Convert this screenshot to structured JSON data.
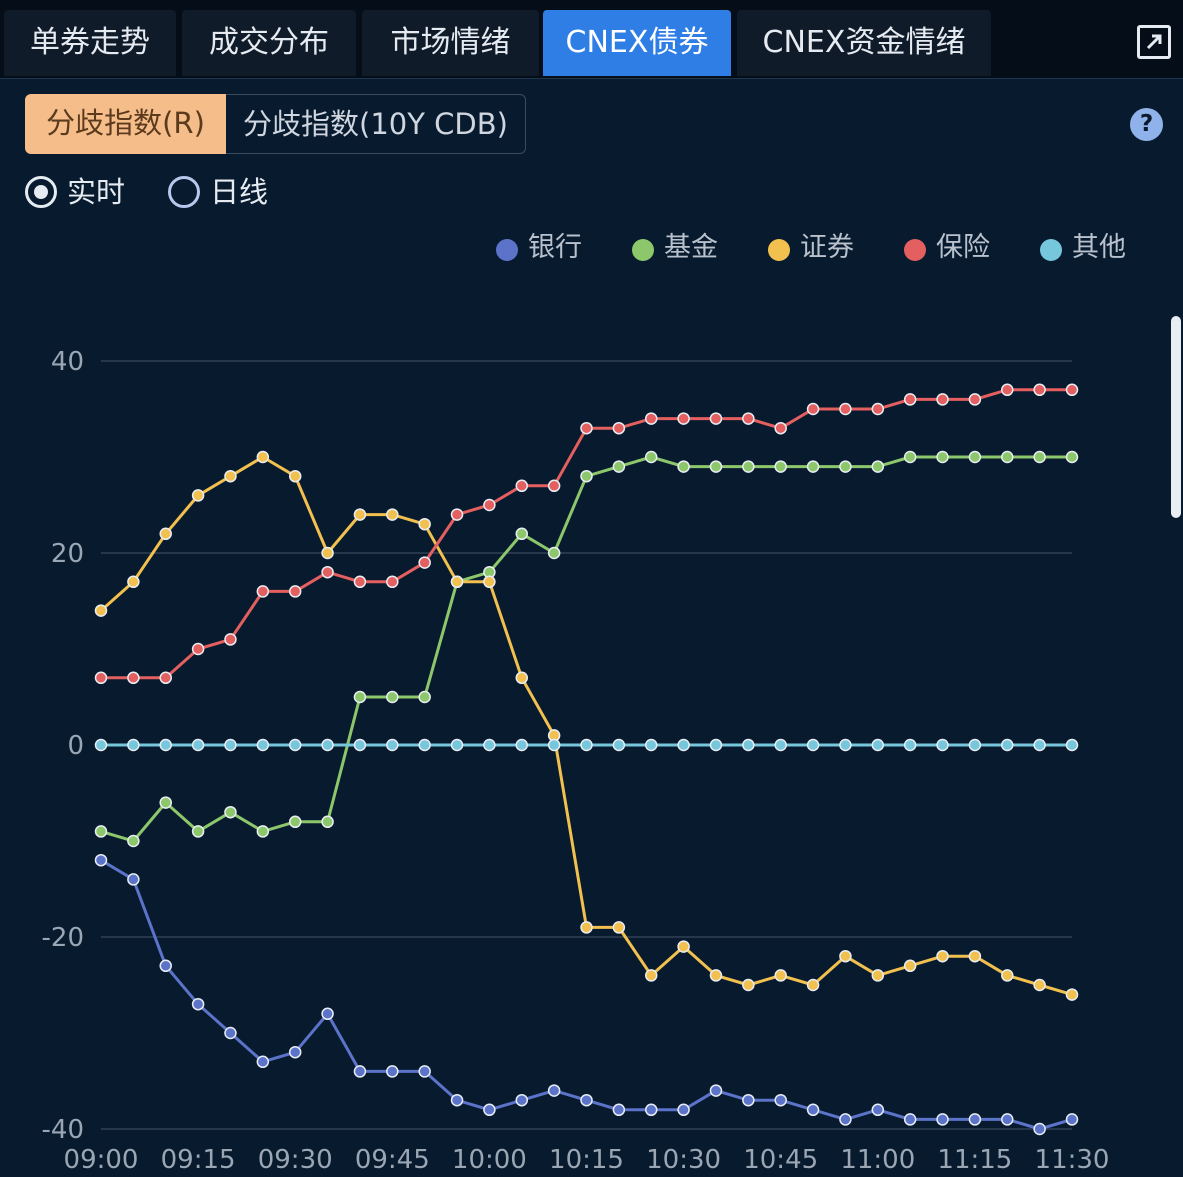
{
  "tabs": [
    {
      "label": "单券走势",
      "active": false
    },
    {
      "label": "成交分布",
      "active": false
    },
    {
      "label": "市场情绪",
      "active": false
    },
    {
      "label": "CNEX债券",
      "active": true
    },
    {
      "label": "CNEX资金情绪",
      "active": false
    }
  ],
  "toolbar": {
    "expand_icon": "expand-icon",
    "help_icon": "help-icon",
    "help_label": "?"
  },
  "segments": [
    {
      "label": "分歧指数(R)",
      "selected": true
    },
    {
      "label": "分歧指数(10Y CDB)",
      "selected": false
    }
  ],
  "mode": [
    {
      "label": "实时",
      "selected": true
    },
    {
      "label": "日线",
      "selected": false
    }
  ],
  "colors": {
    "accent": "#2f7ee6",
    "segment_active": "#f5bd8a",
    "background": "#081a2e"
  },
  "chart_data": {
    "type": "line",
    "title": "",
    "xlabel": "",
    "ylabel": "",
    "ylim": [
      -40,
      40
    ],
    "yticks": [
      40,
      20,
      0,
      -20,
      -40
    ],
    "grid": true,
    "legend_position": "top-right",
    "x": [
      "09:00",
      "09:05",
      "09:10",
      "09:15",
      "09:20",
      "09:25",
      "09:30",
      "09:35",
      "09:40",
      "09:45",
      "09:50",
      "09:55",
      "10:00",
      "10:05",
      "10:10",
      "10:15",
      "10:20",
      "10:25",
      "10:30",
      "10:35",
      "10:40",
      "10:45",
      "10:50",
      "10:55",
      "11:00",
      "11:05",
      "11:10",
      "11:15",
      "11:20",
      "11:25",
      "11:30"
    ],
    "xticks": [
      "09:00",
      "09:15",
      "09:30",
      "09:45",
      "10:00",
      "10:15",
      "10:30",
      "10:45",
      "11:00",
      "11:15",
      "11:30"
    ],
    "series": [
      {
        "name": "银行",
        "color": "#5b73c9",
        "values": [
          -12,
          -14,
          -23,
          -27,
          -30,
          -33,
          -32,
          -28,
          -34,
          -34,
          -34,
          -37,
          -38,
          -37,
          -36,
          -37,
          -38,
          -38,
          -38,
          -36,
          -37,
          -37,
          -38,
          -39,
          -38,
          -39,
          -39,
          -39,
          -39,
          -40,
          -39
        ]
      },
      {
        "name": "基金",
        "color": "#8dc76b",
        "values": [
          -9,
          -10,
          -6,
          -9,
          -7,
          -9,
          -8,
          -8,
          5,
          5,
          5,
          17,
          18,
          22,
          20,
          28,
          29,
          30,
          29,
          29,
          29,
          29,
          29,
          29,
          29,
          30,
          30,
          30,
          30,
          30,
          30
        ]
      },
      {
        "name": "证券",
        "color": "#f2c04e",
        "values": [
          14,
          17,
          22,
          26,
          28,
          30,
          28,
          20,
          24,
          24,
          23,
          17,
          17,
          7,
          1,
          -19,
          -19,
          -24,
          -21,
          -24,
          -25,
          -24,
          -25,
          -22,
          -24,
          -23,
          -22,
          -22,
          -24,
          -25,
          -26
        ]
      },
      {
        "name": "保险",
        "color": "#e45f5f",
        "values": [
          7,
          7,
          7,
          10,
          11,
          16,
          16,
          18,
          17,
          17,
          19,
          24,
          25,
          27,
          27,
          33,
          33,
          34,
          34,
          34,
          34,
          33,
          35,
          35,
          35,
          36,
          36,
          36,
          37,
          37,
          37
        ]
      },
      {
        "name": "其他",
        "color": "#76c6dc",
        "values": [
          0,
          0,
          0,
          0,
          0,
          0,
          0,
          0,
          0,
          0,
          0,
          0,
          0,
          0,
          0,
          0,
          0,
          0,
          0,
          0,
          0,
          0,
          0,
          0,
          0,
          0,
          0,
          0,
          0,
          0,
          0
        ]
      }
    ]
  }
}
